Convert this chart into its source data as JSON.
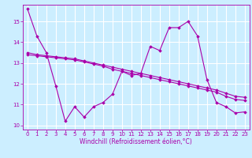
{
  "xlabel": "Windchill (Refroidissement éolien,°C)",
  "background_color": "#cceeff",
  "line_color": "#aa00aa",
  "grid_color": "#ffffff",
  "xlim": [
    -0.5,
    23.5
  ],
  "ylim": [
    9.8,
    15.8
  ],
  "yticks": [
    10,
    11,
    12,
    13,
    14,
    15
  ],
  "xticks": [
    0,
    1,
    2,
    3,
    4,
    5,
    6,
    7,
    8,
    9,
    10,
    11,
    12,
    13,
    14,
    15,
    16,
    17,
    18,
    19,
    20,
    21,
    22,
    23
  ],
  "series": [
    {
      "x": [
        0,
        1,
        2,
        3,
        4,
        5,
        6,
        7,
        8,
        9,
        10,
        11,
        12,
        13,
        14,
        15,
        16,
        17,
        18,
        19,
        20,
        21,
        22,
        23
      ],
      "y": [
        15.6,
        14.3,
        13.5,
        11.9,
        10.2,
        10.9,
        10.4,
        10.9,
        11.1,
        11.5,
        12.6,
        12.4,
        12.5,
        13.8,
        13.6,
        14.7,
        14.7,
        15.0,
        14.3,
        12.2,
        11.1,
        10.9,
        10.6,
        10.65
      ]
    },
    {
      "x": [
        0,
        1,
        2,
        3,
        4,
        5,
        6,
        7,
        8,
        9,
        10,
        11,
        12,
        13,
        14,
        15,
        16,
        17,
        18,
        19,
        20,
        21,
        22,
        23
      ],
      "y": [
        13.5,
        13.4,
        13.35,
        13.3,
        13.25,
        13.2,
        13.1,
        13.0,
        12.9,
        12.8,
        12.7,
        12.6,
        12.5,
        12.4,
        12.3,
        12.2,
        12.1,
        12.0,
        11.9,
        11.8,
        11.7,
        11.55,
        11.4,
        11.35
      ]
    },
    {
      "x": [
        0,
        1,
        2,
        3,
        4,
        5,
        6,
        7,
        8,
        9,
        10,
        11,
        12,
        13,
        14,
        15,
        16,
        17,
        18,
        19,
        20,
        21,
        22,
        23
      ],
      "y": [
        13.4,
        13.35,
        13.3,
        13.25,
        13.2,
        13.15,
        13.05,
        12.95,
        12.85,
        12.7,
        12.6,
        12.5,
        12.4,
        12.3,
        12.2,
        12.1,
        12.0,
        11.9,
        11.8,
        11.7,
        11.6,
        11.4,
        11.25,
        11.2
      ]
    }
  ],
  "fontsize_xlabel": 5.5,
  "fontsize_tick": 5.0,
  "marker": "D",
  "markersize": 1.8,
  "linewidth": 0.8
}
